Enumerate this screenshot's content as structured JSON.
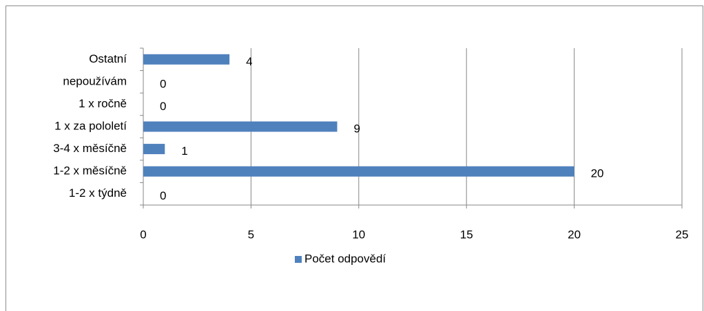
{
  "chart_data": {
    "type": "bar",
    "orientation": "horizontal",
    "categories": [
      "Ostatní",
      "nepoužívám",
      "1 x ročně",
      "1 x za pololetí",
      "3-4 x měsíčně",
      "1-2 x měsíčně",
      "1-2 x týdně"
    ],
    "series": [
      {
        "name": "Počet odpovědí",
        "color": "#4f81bd",
        "values": [
          4,
          0,
          0,
          9,
          1,
          20,
          0
        ]
      }
    ],
    "xlim": [
      0,
      25
    ],
    "xticks": [
      0,
      5,
      10,
      15,
      20,
      25
    ],
    "grid": true,
    "legend": "bottom"
  }
}
